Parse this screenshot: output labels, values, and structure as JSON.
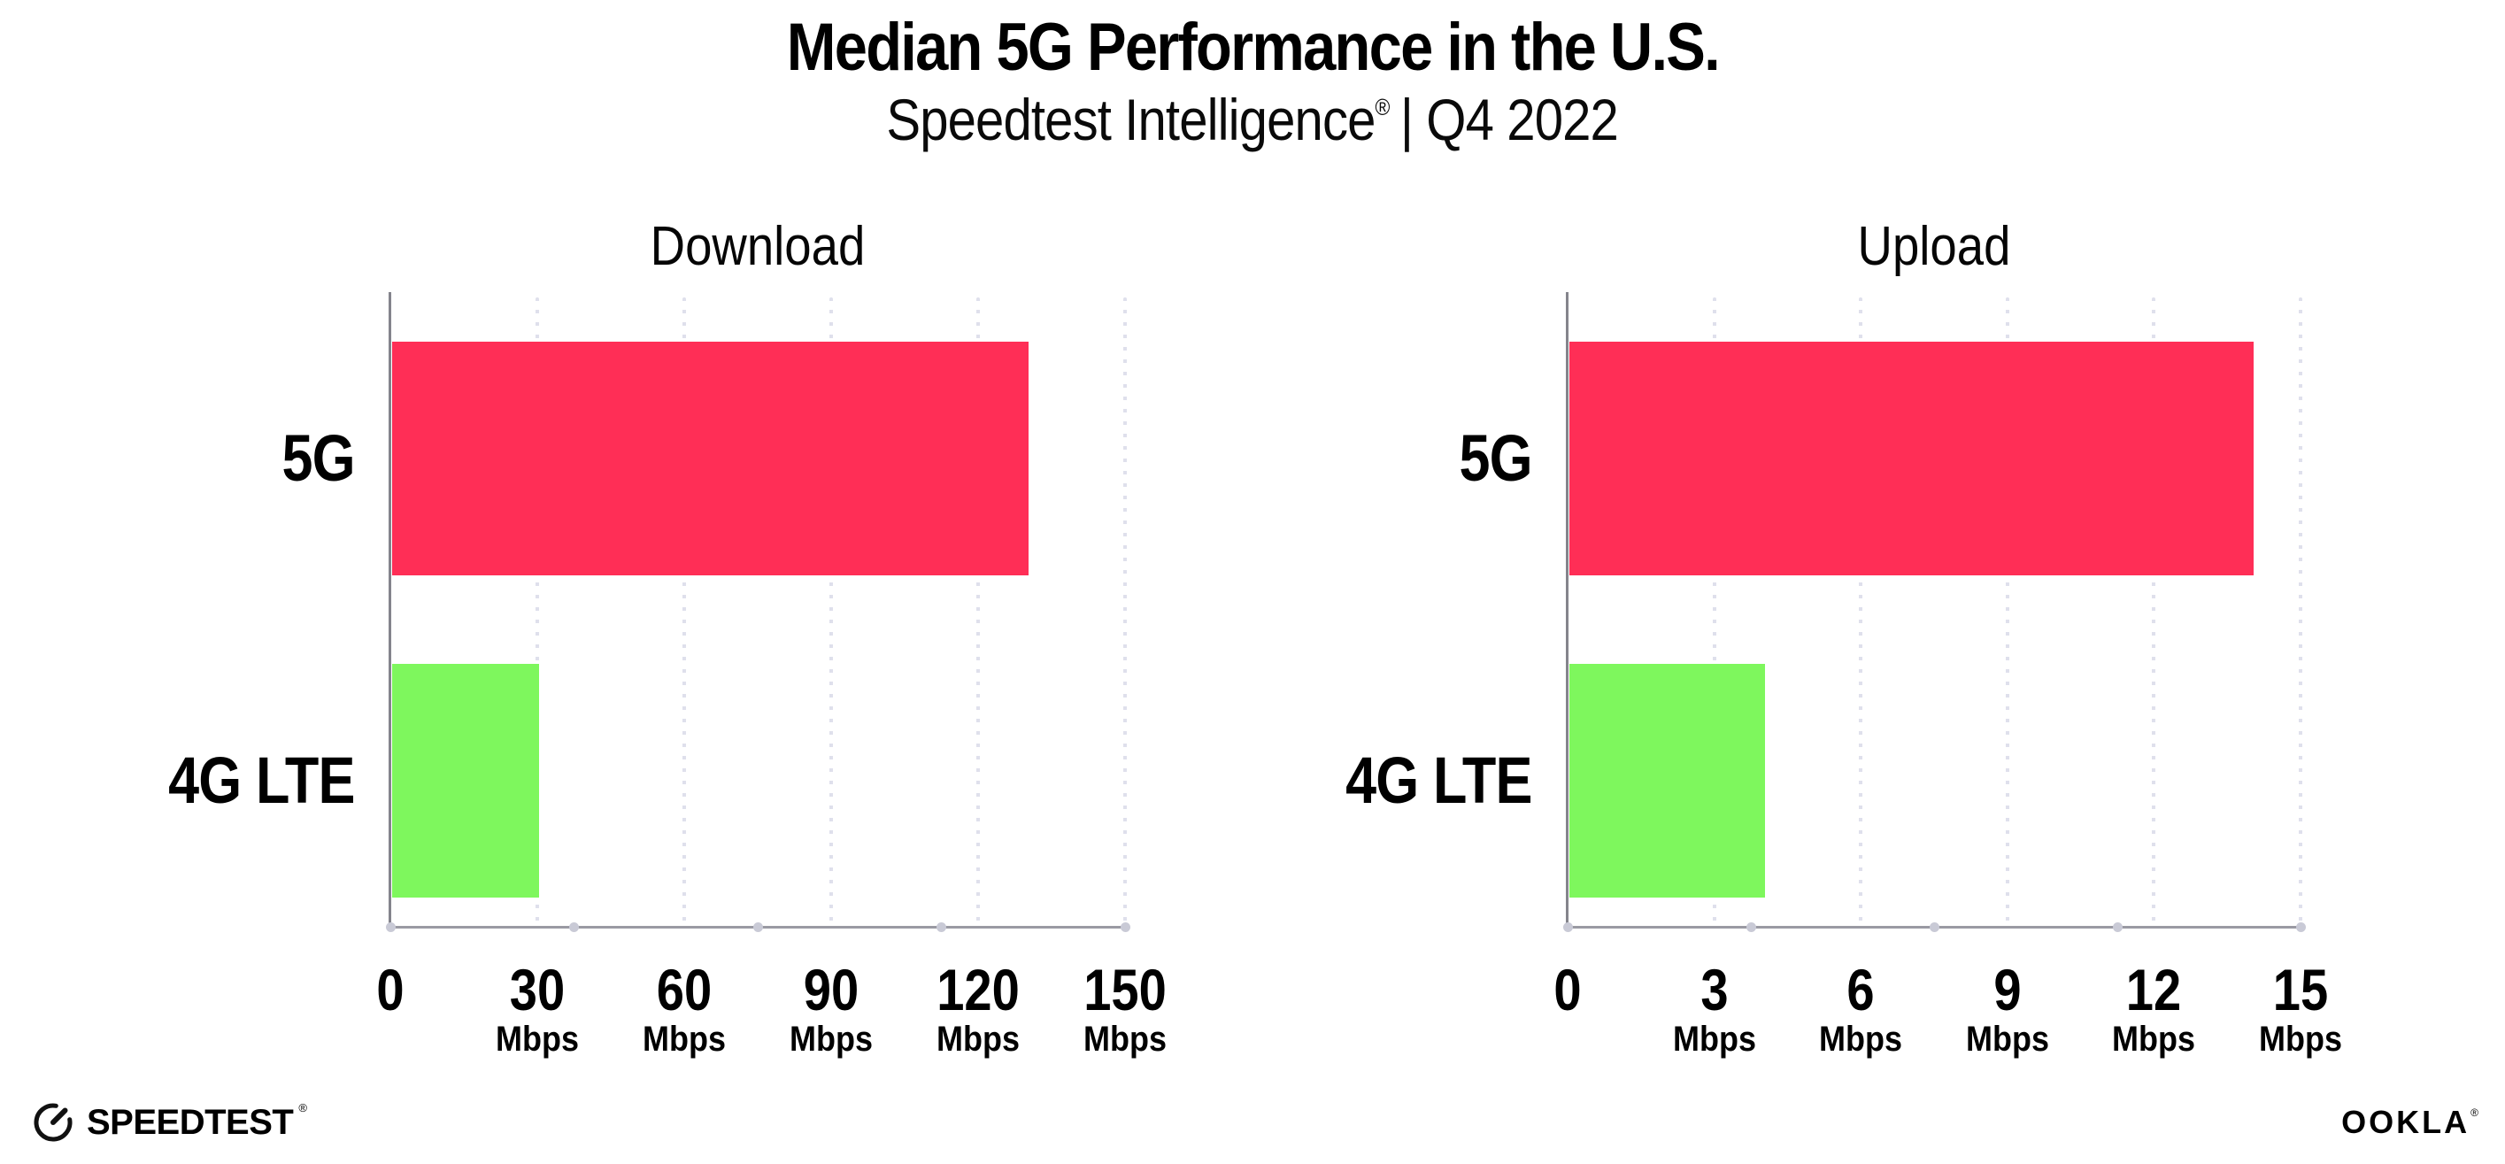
{
  "page": {
    "title": "Median 5G Performance in the U.S.",
    "subtitle": {
      "brand": "Speedtest Intelligence",
      "reg": "®",
      "rest": "| Q4 2022"
    }
  },
  "chart_data": [
    {
      "type": "bar",
      "orientation": "horizontal",
      "title": "Download",
      "categories": [
        "5G",
        "4G LTE"
      ],
      "values": [
        130,
        30
      ],
      "unit": "Mbps",
      "xlabel": "",
      "ylabel": "",
      "xlim": [
        0,
        150
      ],
      "xticks": [
        0,
        30,
        60,
        90,
        120,
        150
      ],
      "grid": "vertical-dotted",
      "legend": "none",
      "bar_colors": [
        "#ff2e56",
        "#7ef75d"
      ]
    },
    {
      "type": "bar",
      "orientation": "horizontal",
      "title": "Upload",
      "categories": [
        "5G",
        "4G LTE"
      ],
      "values": [
        14,
        4
      ],
      "unit": "Mbps",
      "xlabel": "",
      "ylabel": "",
      "xlim": [
        0,
        15
      ],
      "xticks": [
        0,
        3,
        6,
        9,
        12,
        15
      ],
      "grid": "vertical-dotted",
      "legend": "none",
      "bar_colors": [
        "#ff2e56",
        "#7ef75d"
      ]
    }
  ],
  "footer": {
    "speedtest_label": "SPEEDTEST",
    "speedtest_reg": "®",
    "ookla_label": "OOKLA",
    "ookla_reg": "®"
  },
  "colors": {
    "accent_pink": "#ff2e56",
    "accent_green": "#7ef75d",
    "gridline": "#dfe0ec",
    "y_axis": "#84848c",
    "x_axis": "#9a9aa3",
    "axis_dot": "#c9cad6",
    "text": "#000000",
    "background": "#ffffff"
  }
}
